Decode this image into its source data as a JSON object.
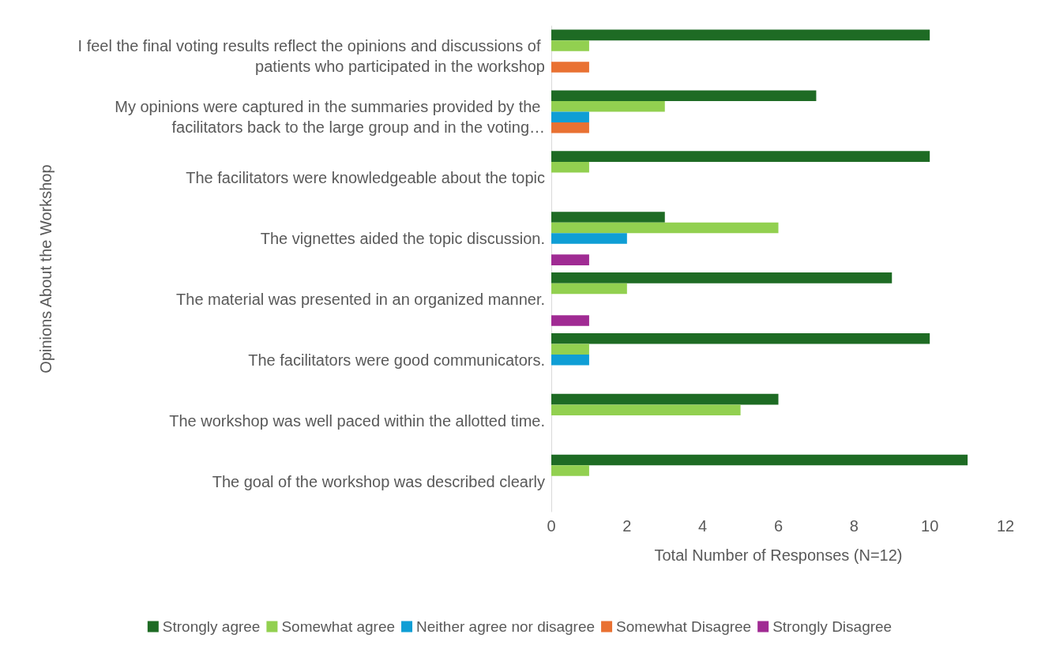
{
  "chart_data": {
    "type": "bar",
    "orientation": "horizontal",
    "xlabel": "Total Number of Responses (N=12)",
    "ylabel": "Opinions About the Workshop",
    "categories": [
      "I feel the final voting results reflect the opinions and discussions of patients who participated in the workshop",
      "My opinions were captured in the summaries provided by the facilitators back to the large group and in the voting…",
      "The facilitators were knowledgeable about the topic",
      "The vignettes aided the topic discussion.",
      "The material was presented in an organized manner.",
      "The facilitators were good communicators.",
      "The workshop was well paced within the allotted time.",
      "The goal of the workshop was described clearly"
    ],
    "series": [
      {
        "name": "Strongly agree",
        "color": "#1e6b24",
        "values": [
          10,
          7,
          10,
          3,
          9,
          10,
          6,
          11
        ]
      },
      {
        "name": "Somewhat agree",
        "color": "#92d050",
        "values": [
          1,
          3,
          1,
          6,
          2,
          1,
          5,
          1
        ]
      },
      {
        "name": "Neither agree nor disagree",
        "color": "#0f9ed5",
        "values": [
          0,
          1,
          0,
          2,
          0,
          1,
          0,
          0
        ]
      },
      {
        "name": "Somewhat Disagree",
        "color": "#e97132",
        "values": [
          1,
          1,
          0,
          0,
          0,
          0,
          0,
          0
        ]
      },
      {
        "name": "Strongly Disagree",
        "color": "#a02b93",
        "values": [
          0,
          0,
          0,
          1,
          1,
          0,
          0,
          0
        ]
      }
    ],
    "xlim": [
      0,
      12
    ],
    "xticks": [
      0,
      2,
      4,
      6,
      8,
      10,
      12
    ],
    "grid": false,
    "legend": "bottom"
  }
}
